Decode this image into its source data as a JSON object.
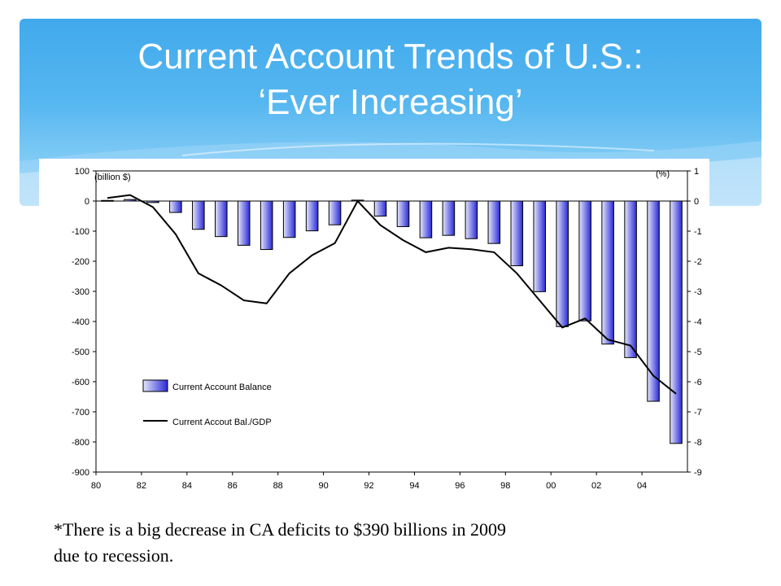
{
  "slide": {
    "title_line1": "Current Account Trends of U.S.:",
    "title_line2": "‘Ever Increasing’",
    "footnote_line1": "*There is a big decrease in CA deficits to $390 billions in 2009",
    "footnote_line2": "due to recession."
  },
  "colors": {
    "banner": "#4aaeee",
    "bar_dark": "#2a2ad8",
    "bar_light": "#e4e6fb",
    "line": "#000000"
  },
  "chart_data": {
    "type": "bar",
    "left_unit_label": "(billion $)",
    "right_unit_label": "(%)",
    "x": [
      1980,
      1981,
      1982,
      1983,
      1984,
      1985,
      1986,
      1987,
      1988,
      1989,
      1990,
      1991,
      1992,
      1993,
      1994,
      1995,
      1996,
      1997,
      1998,
      1999,
      2000,
      2001,
      2002,
      2003,
      2004,
      2005
    ],
    "x_tick_labels": [
      "80",
      "82",
      "84",
      "86",
      "88",
      "90",
      "92",
      "94",
      "96",
      "98",
      "00",
      "02",
      "04"
    ],
    "left_axis": {
      "min": -900,
      "max": 100,
      "ticks": [
        100,
        0,
        -100,
        -200,
        -300,
        -400,
        -500,
        -600,
        -700,
        -800,
        -900
      ]
    },
    "right_axis": {
      "min": -9,
      "max": 1,
      "ticks": [
        "1",
        "0",
        "-1",
        "-2",
        "-3",
        "-4",
        "-5",
        "-6",
        "-7",
        "-8",
        "-9"
      ]
    },
    "series": [
      {
        "name": "Current Account Balance",
        "kind": "bar",
        "axis": "left",
        "values": [
          2,
          5,
          -5,
          -38,
          -94,
          -118,
          -147,
          -161,
          -121,
          -99,
          -79,
          3,
          -50,
          -85,
          -122,
          -114,
          -125,
          -141,
          -215,
          -301,
          -417,
          -398,
          -475,
          -520,
          -665,
          -805
        ]
      },
      {
        "name": "Current Accout Bal./GDP",
        "kind": "line",
        "axis": "right",
        "values": [
          0.1,
          0.2,
          -0.2,
          -1.1,
          -2.4,
          -2.8,
          -3.3,
          -3.4,
          -2.4,
          -1.8,
          -1.4,
          0.0,
          -0.8,
          -1.3,
          -1.7,
          -1.55,
          -1.6,
          -1.7,
          -2.4,
          -3.3,
          -4.2,
          -3.9,
          -4.6,
          -4.8,
          -5.8,
          -6.4
        ]
      }
    ],
    "legend": [
      {
        "label": "Current Account Balance",
        "kind": "bar"
      },
      {
        "label": "Current Accout Bal./GDP",
        "kind": "line"
      }
    ],
    "legend_position": "lower-left",
    "grid": false
  }
}
